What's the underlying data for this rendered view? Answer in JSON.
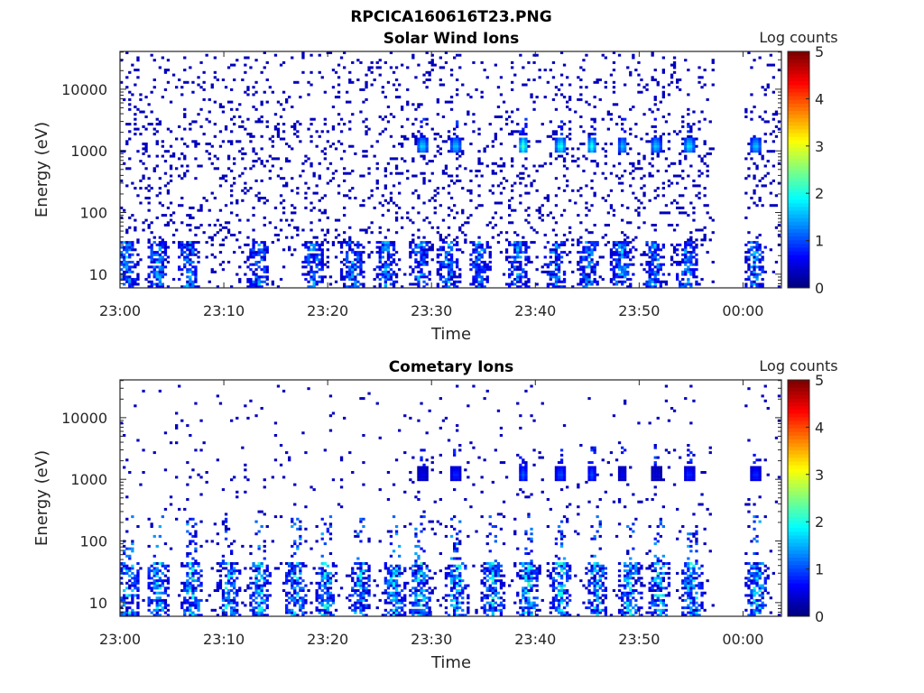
{
  "figure_title": "RPCICA160616T23.PNG",
  "chart_data": [
    {
      "type": "heatmap",
      "title": "Solar Wind Ions",
      "xlabel": "Time",
      "ylabel": "Energy (eV)",
      "x_ticks": [
        "23:00",
        "23:10",
        "23:20",
        "23:30",
        "23:40",
        "23:50",
        "00:00"
      ],
      "x_tick_minutes": [
        0,
        10,
        20,
        30,
        40,
        50,
        60
      ],
      "xlim_minutes": [
        0,
        63.7
      ],
      "y_scale": "log",
      "y_ticks": [
        "10",
        "100",
        "1000",
        "10000"
      ],
      "y_tick_values": [
        10,
        100,
        1000,
        10000
      ],
      "ylim": [
        6,
        41000
      ],
      "colorbar": {
        "label": "Log counts",
        "ticks": [
          "0",
          "1",
          "2",
          "3",
          "4",
          "5"
        ],
        "range": [
          0,
          5
        ],
        "colormap": "jet"
      },
      "data_gap_minutes": [
        57.0,
        60.1
      ],
      "features": {
        "background_scatter": {
          "energy_range": [
            30,
            40000
          ],
          "log_counts": 0.3,
          "density": 0.11
        },
        "low_energy_bursts_minutes": [
          0.5,
          3.5,
          6.5,
          13.2,
          18.5,
          22.3,
          25.5,
          28.8,
          31.5,
          34.5,
          38.2,
          41.8,
          45.0,
          48.2,
          51.3,
          54.5,
          61.0
        ],
        "low_energy_range": [
          6,
          35
        ],
        "solar_wind_bursts": [
          {
            "minute": 29.0,
            "energy": 1200,
            "log_counts": 1.9
          },
          {
            "minute": 32.2,
            "energy": 1200,
            "log_counts": 1.8
          },
          {
            "minute": 38.7,
            "energy": 1200,
            "log_counts": 2.3
          },
          {
            "minute": 42.3,
            "energy": 1200,
            "log_counts": 2.2
          },
          {
            "minute": 45.3,
            "energy": 1200,
            "log_counts": 2.1
          },
          {
            "minute": 48.3,
            "energy": 1200,
            "log_counts": 1.7
          },
          {
            "minute": 51.5,
            "energy": 1200,
            "log_counts": 1.8
          },
          {
            "minute": 54.7,
            "energy": 1200,
            "log_counts": 2.0
          },
          {
            "minute": 61.1,
            "energy": 1200,
            "log_counts": 1.8
          }
        ]
      }
    },
    {
      "type": "heatmap",
      "title": "Cometary Ions",
      "xlabel": "Time",
      "ylabel": "Energy (eV)",
      "x_ticks": [
        "23:00",
        "23:10",
        "23:20",
        "23:30",
        "23:40",
        "23:50",
        "00:00"
      ],
      "x_tick_minutes": [
        0,
        10,
        20,
        30,
        40,
        50,
        60
      ],
      "xlim_minutes": [
        0,
        63.7
      ],
      "y_scale": "log",
      "y_ticks": [
        "10",
        "100",
        "1000",
        "10000"
      ],
      "y_tick_values": [
        10,
        100,
        1000,
        10000
      ],
      "ylim": [
        6,
        41000
      ],
      "colorbar": {
        "label": "Log counts",
        "ticks": [
          "0",
          "1",
          "2",
          "3",
          "4",
          "5"
        ],
        "range": [
          0,
          5
        ],
        "colormap": "jet"
      },
      "data_gap_minutes": [
        57.0,
        60.1
      ],
      "features": {
        "background_scatter": {
          "energy_range": [
            60,
            35000
          ],
          "log_counts": 0.3,
          "density": 0.025
        },
        "low_energy_bursts_minutes": [
          0.7,
          3.5,
          6.8,
          10.3,
          13.3,
          16.8,
          19.7,
          23.0,
          26.3,
          28.8,
          32.3,
          35.8,
          39.2,
          42.3,
          45.8,
          49.0,
          51.8,
          55.0,
          61.2
        ],
        "low_energy_range": [
          6,
          45
        ],
        "solar_wind_bursts": [
          {
            "minute": 29.0,
            "energy": 1200,
            "log_counts": 0.6
          },
          {
            "minute": 32.2,
            "energy": 1200,
            "log_counts": 0.9
          },
          {
            "minute": 38.7,
            "energy": 1200,
            "log_counts": 1.1
          },
          {
            "minute": 42.3,
            "energy": 1200,
            "log_counts": 1.1
          },
          {
            "minute": 45.3,
            "energy": 1200,
            "log_counts": 1.0
          },
          {
            "minute": 48.3,
            "energy": 1200,
            "log_counts": 0.6
          },
          {
            "minute": 51.5,
            "energy": 1200,
            "log_counts": 0.5
          },
          {
            "minute": 54.7,
            "energy": 1200,
            "log_counts": 0.9
          },
          {
            "minute": 61.1,
            "energy": 1200,
            "log_counts": 0.9
          }
        ]
      }
    }
  ]
}
